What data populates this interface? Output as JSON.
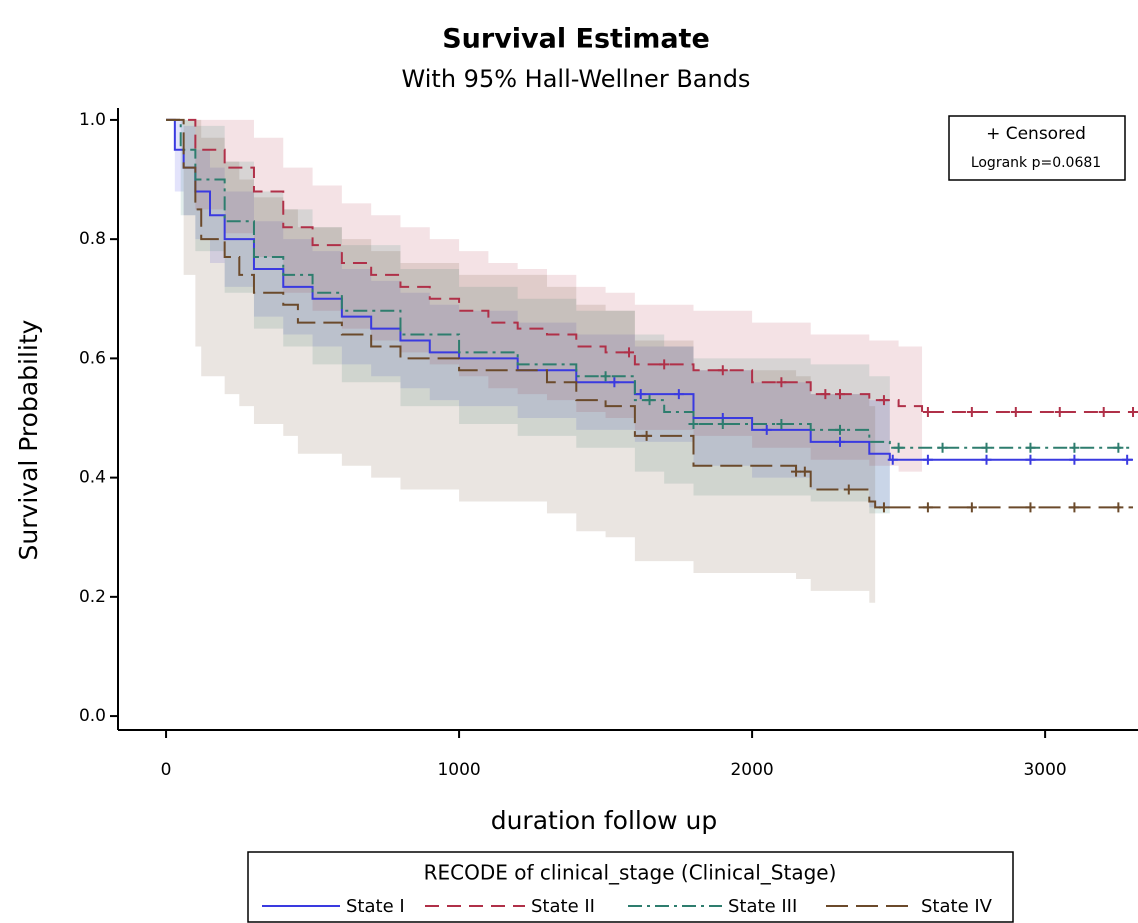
{
  "chart_data": {
    "type": "survival",
    "title": "Survival Estimate",
    "subtitle": "With 95% Hall-Wellner Bands",
    "x_label": "duration follow up",
    "y_label": "Survival Probability",
    "xlim": [
      -164,
      3317
    ],
    "ylim": [
      -0.02,
      1.02
    ],
    "xticks": [
      0,
      1000,
      2000,
      3000
    ],
    "yticks": [
      {
        "value": 0,
        "label": "0.0"
      },
      0.2,
      0.4,
      0.6,
      0.8,
      {
        "value": 1,
        "label": "1.0"
      }
    ],
    "annotations": [
      "+ Censored",
      "Logrank p=0.0681"
    ],
    "legend_title": "RECODE of clinical_stage (Clinical_Stage)",
    "series": [
      {
        "name": "State I",
        "color": "#3a3ae0",
        "dash": "none",
        "x": [
          0,
          30,
          60,
          100,
          150,
          200,
          300,
          400,
          500,
          600,
          700,
          800,
          900,
          1000,
          1200,
          1400,
          1600,
          1800,
          2000,
          2200,
          2400,
          2470,
          3300
        ],
        "values": [
          1,
          0.95,
          0.92,
          0.88,
          0.84,
          0.8,
          0.75,
          0.72,
          0.7,
          0.67,
          0.65,
          0.63,
          0.61,
          0.6,
          0.58,
          0.56,
          0.54,
          0.5,
          0.48,
          0.46,
          0.44,
          0.43,
          0.43
        ],
        "lower": [
          1,
          0.88,
          0.84,
          0.8,
          0.76,
          0.72,
          0.67,
          0.64,
          0.62,
          0.59,
          0.57,
          0.55,
          0.53,
          0.52,
          0.5,
          0.48,
          0.46,
          0.42,
          0.4,
          0.38,
          0.35,
          0.33,
          null
        ],
        "upper": [
          1,
          1,
          0.99,
          0.95,
          0.92,
          0.88,
          0.83,
          0.8,
          0.78,
          0.75,
          0.73,
          0.71,
          0.69,
          0.68,
          0.66,
          0.64,
          0.62,
          0.58,
          0.56,
          0.54,
          0.53,
          0.53,
          null
        ],
        "censor_x": [
          1530,
          1620,
          1750,
          1900,
          2050,
          2300,
          2480,
          2600,
          2800,
          2950,
          3100,
          3280
        ],
        "censor_y": [
          0.56,
          0.54,
          0.54,
          0.5,
          0.48,
          0.46,
          0.43,
          0.43,
          0.43,
          0.43,
          0.43,
          0.43
        ]
      },
      {
        "name": "State II",
        "color": "#b03048",
        "dash": "14,8",
        "x": [
          0,
          100,
          200,
          300,
          400,
          500,
          600,
          700,
          800,
          900,
          1000,
          1100,
          1200,
          1300,
          1400,
          1500,
          1600,
          1800,
          2000,
          2200,
          2400,
          2500,
          2580,
          3300
        ],
        "values": [
          1,
          0.95,
          0.92,
          0.88,
          0.82,
          0.79,
          0.76,
          0.74,
          0.72,
          0.7,
          0.68,
          0.66,
          0.65,
          0.64,
          0.62,
          0.61,
          0.59,
          0.58,
          0.56,
          0.54,
          0.53,
          0.52,
          0.51,
          0.51
        ],
        "lower": [
          1,
          0.85,
          0.81,
          0.77,
          0.71,
          0.68,
          0.65,
          0.63,
          0.61,
          0.59,
          0.57,
          0.55,
          0.54,
          0.53,
          0.51,
          0.5,
          0.48,
          0.47,
          0.45,
          0.43,
          0.42,
          0.41,
          0.4,
          null
        ],
        "upper": [
          1,
          1,
          1,
          0.97,
          0.92,
          0.89,
          0.86,
          0.84,
          0.82,
          0.8,
          0.78,
          0.76,
          0.75,
          0.74,
          0.72,
          0.71,
          0.69,
          0.68,
          0.66,
          0.64,
          0.63,
          0.62,
          0.61,
          null
        ],
        "censor_x": [
          1580,
          1700,
          1900,
          2100,
          2250,
          2300,
          2450,
          2600,
          2750,
          2900,
          3050,
          3200,
          3300
        ],
        "censor_y": [
          0.61,
          0.59,
          0.58,
          0.56,
          0.54,
          0.54,
          0.53,
          0.51,
          0.51,
          0.51,
          0.51,
          0.51,
          0.51
        ]
      },
      {
        "name": "State III",
        "color": "#2e7d6e",
        "dash": "14,5,3,5",
        "x": [
          0,
          50,
          100,
          200,
          300,
          400,
          500,
          600,
          800,
          1000,
          1200,
          1400,
          1600,
          1700,
          1800,
          2000,
          2200,
          2400,
          2470,
          3300
        ],
        "values": [
          1,
          0.95,
          0.9,
          0.83,
          0.77,
          0.74,
          0.71,
          0.68,
          0.64,
          0.61,
          0.59,
          0.57,
          0.53,
          0.51,
          0.49,
          0.49,
          0.48,
          0.46,
          0.45,
          0.45
        ],
        "lower": [
          1,
          0.84,
          0.78,
          0.71,
          0.65,
          0.62,
          0.59,
          0.56,
          0.52,
          0.49,
          0.47,
          0.45,
          0.41,
          0.39,
          0.37,
          0.37,
          0.36,
          0.34,
          0.33,
          null
        ],
        "upper": [
          1,
          1,
          0.99,
          0.93,
          0.88,
          0.85,
          0.82,
          0.79,
          0.75,
          0.72,
          0.7,
          0.68,
          0.64,
          0.62,
          0.6,
          0.6,
          0.59,
          0.57,
          0.56,
          null
        ],
        "censor_x": [
          1500,
          1650,
          1800,
          1900,
          2100,
          2300,
          2500,
          2650,
          2800,
          2950,
          3100,
          3250
        ],
        "censor_y": [
          0.57,
          0.53,
          0.49,
          0.49,
          0.49,
          0.48,
          0.45,
          0.45,
          0.45,
          0.45,
          0.45,
          0.45
        ]
      },
      {
        "name": "State IV",
        "color": "#6b4a2b",
        "dash": "22,8",
        "x": [
          0,
          60,
          100,
          120,
          200,
          250,
          300,
          400,
          450,
          600,
          700,
          800,
          1000,
          1300,
          1400,
          1500,
          1600,
          1800,
          2150,
          2200,
          2400,
          2420,
          3300
        ],
        "values": [
          1,
          0.92,
          0.85,
          0.8,
          0.77,
          0.74,
          0.71,
          0.69,
          0.66,
          0.64,
          0.62,
          0.6,
          0.58,
          0.56,
          0.53,
          0.52,
          0.47,
          0.42,
          0.41,
          0.38,
          0.36,
          0.35,
          0.35
        ],
        "lower": [
          1,
          0.74,
          0.62,
          0.57,
          0.54,
          0.52,
          0.49,
          0.47,
          0.44,
          0.42,
          0.4,
          0.38,
          0.36,
          0.34,
          0.31,
          0.3,
          0.26,
          0.24,
          0.23,
          0.21,
          0.19,
          0.18,
          null
        ],
        "upper": [
          1,
          1,
          1,
          0.97,
          0.93,
          0.9,
          0.87,
          0.85,
          0.82,
          0.8,
          0.78,
          0.76,
          0.74,
          0.72,
          0.69,
          0.68,
          0.63,
          0.58,
          0.57,
          0.54,
          0.52,
          0.51,
          null
        ],
        "censor_x": [
          1640,
          2150,
          2180,
          2330,
          2450,
          2600,
          2750,
          2950,
          3100,
          3250
        ],
        "censor_y": [
          0.47,
          0.41,
          0.41,
          0.38,
          0.35,
          0.35,
          0.35,
          0.35,
          0.35,
          0.35
        ]
      }
    ]
  }
}
